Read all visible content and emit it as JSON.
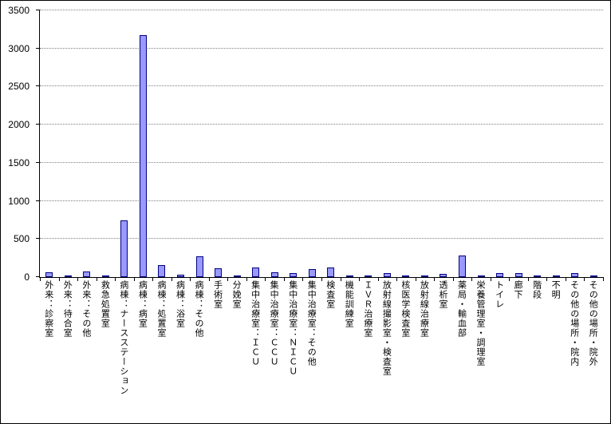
{
  "chart_data": {
    "type": "bar",
    "title": "",
    "xlabel": "",
    "ylabel": "",
    "ylim": [
      0,
      3500
    ],
    "yticks": [
      0,
      500,
      1000,
      1500,
      2000,
      2500,
      3000,
      3500
    ],
    "grid": "dotted-horizontal",
    "legend": "none",
    "categories": [
      "外来：診察室",
      "外来：待合室",
      "外来：その他",
      "救急処置室",
      "病棟：ナースステーション",
      "病棟：病室",
      "病棟：処置室",
      "病棟：浴室",
      "病棟：その他",
      "手術室",
      "分娩室",
      "集中治療室：ＩＣＵ",
      "集中治療室：ＣＣＵ",
      "集中治療室：ＮＩＣＵ",
      "集中治療室：その他",
      "検査室",
      "機能訓練室",
      "ＩＶＲ治療室",
      "放射線撮影室・検査室",
      "核医学検査室",
      "放射線治療室",
      "透析室",
      "薬局・輸血部",
      "栄養管理室・調理室",
      "トイレ",
      "廊下",
      "階段",
      "不明",
      "その他の場所・院内",
      "その他の場所・院外"
    ],
    "values": [
      60,
      10,
      75,
      20,
      740,
      3170,
      160,
      30,
      270,
      120,
      5,
      130,
      60,
      55,
      105,
      125,
      25,
      5,
      55,
      5,
      5,
      40,
      280,
      15,
      50,
      55,
      10,
      10,
      55,
      15
    ],
    "colors": {
      "bar_fill": "#9999FF",
      "bar_border": "#000080",
      "grid_color": "#808080",
      "axis_color": "#000000",
      "background": "#FFFFFF"
    }
  }
}
